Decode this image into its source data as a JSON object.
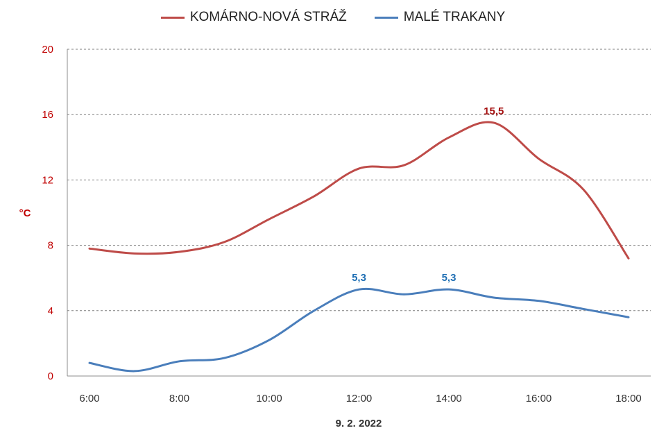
{
  "chart_data": {
    "type": "line",
    "x": [
      "6:00",
      "7:00",
      "8:00",
      "9:00",
      "10:00",
      "11:00",
      "12:00",
      "13:00",
      "14:00",
      "15:00",
      "16:00",
      "17:00",
      "18:00"
    ],
    "xticks": [
      "6:00",
      "8:00",
      "10:00",
      "12:00",
      "14:00",
      "16:00",
      "18:00"
    ],
    "xlabel": "9. 2. 2022",
    "ylabel": "°C",
    "ylim": [
      0,
      20
    ],
    "yticks": [
      "0",
      "4",
      "8",
      "12",
      "16",
      "20"
    ],
    "grid": "horizontal-dashed",
    "legend_position": "top",
    "series": [
      {
        "name": "KOMÁRNO-NOVÁ STRÁŽ",
        "color": "#be4b48",
        "label_color": "#a50f0f",
        "values": [
          7.8,
          7.5,
          7.6,
          8.2,
          9.6,
          11.0,
          12.7,
          12.9,
          14.6,
          15.5,
          13.3,
          11.4,
          7.2
        ],
        "labels": [
          {
            "index": 9,
            "text": "15,5"
          }
        ]
      },
      {
        "name": "MALÉ TRAKANY",
        "color": "#4a7ebb",
        "label_color": "#1f6fb4",
        "values": [
          0.8,
          0.3,
          0.9,
          1.1,
          2.2,
          4.0,
          5.3,
          5.0,
          5.3,
          4.8,
          4.6,
          4.1,
          3.6
        ],
        "labels": [
          {
            "index": 6,
            "text": "5,3"
          },
          {
            "index": 8,
            "text": "5,3"
          }
        ]
      }
    ]
  }
}
